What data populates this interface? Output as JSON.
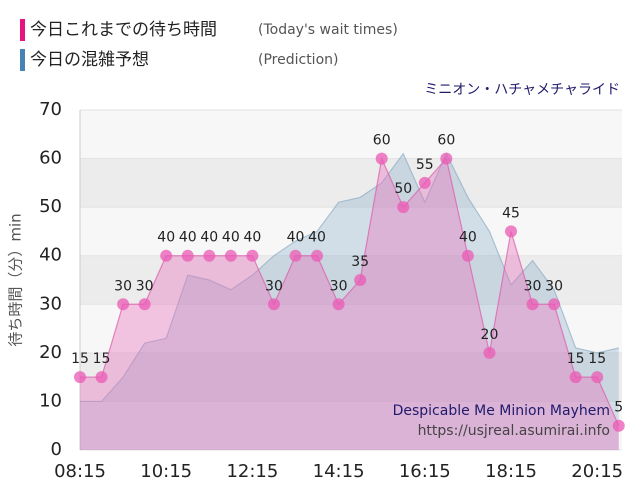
{
  "chart_data": {
    "type": "area",
    "title": "ミニオン・ハチャメチャライド",
    "watermark": [
      "Despicable Me Minion Mayhem",
      "https://usjreal.asumirai.info"
    ],
    "ylabel": "待ち時間（分）min",
    "x": [
      "08:15",
      "08:45",
      "09:15",
      "09:45",
      "10:15",
      "10:45",
      "11:15",
      "11:45",
      "12:15",
      "12:45",
      "13:15",
      "13:45",
      "14:15",
      "14:45",
      "15:15",
      "15:45",
      "16:15",
      "16:45",
      "17:15",
      "17:45",
      "18:15",
      "18:45",
      "19:15",
      "19:45",
      "20:15",
      "20:45"
    ],
    "xticks": [
      "08:15",
      "10:15",
      "12:15",
      "14:15",
      "16:15",
      "18:15",
      "20:15"
    ],
    "ylim": [
      0,
      70
    ],
    "yticks": [
      0,
      10,
      20,
      30,
      40,
      50,
      60,
      70
    ],
    "grid": true,
    "series": [
      {
        "name": "今日これまでの待ち時間",
        "note": "(Today's wait times)",
        "color": "#e4157e",
        "markers": true,
        "data_labels": true,
        "values": [
          15,
          15,
          30,
          30,
          40,
          40,
          40,
          40,
          40,
          30,
          40,
          40,
          30,
          35,
          60,
          50,
          55,
          60,
          40,
          20,
          45,
          30,
          30,
          15,
          15,
          5
        ]
      },
      {
        "name": "今日の混雑予想",
        "note": "(Prediction)",
        "color": "#4682b4",
        "markers": false,
        "data_labels": false,
        "values": [
          10,
          10,
          15,
          22,
          23,
          36,
          35,
          33,
          36,
          40,
          43,
          45,
          51,
          52,
          55,
          61,
          51,
          61,
          52,
          45,
          34,
          39,
          33,
          21,
          20,
          21
        ]
      }
    ]
  }
}
